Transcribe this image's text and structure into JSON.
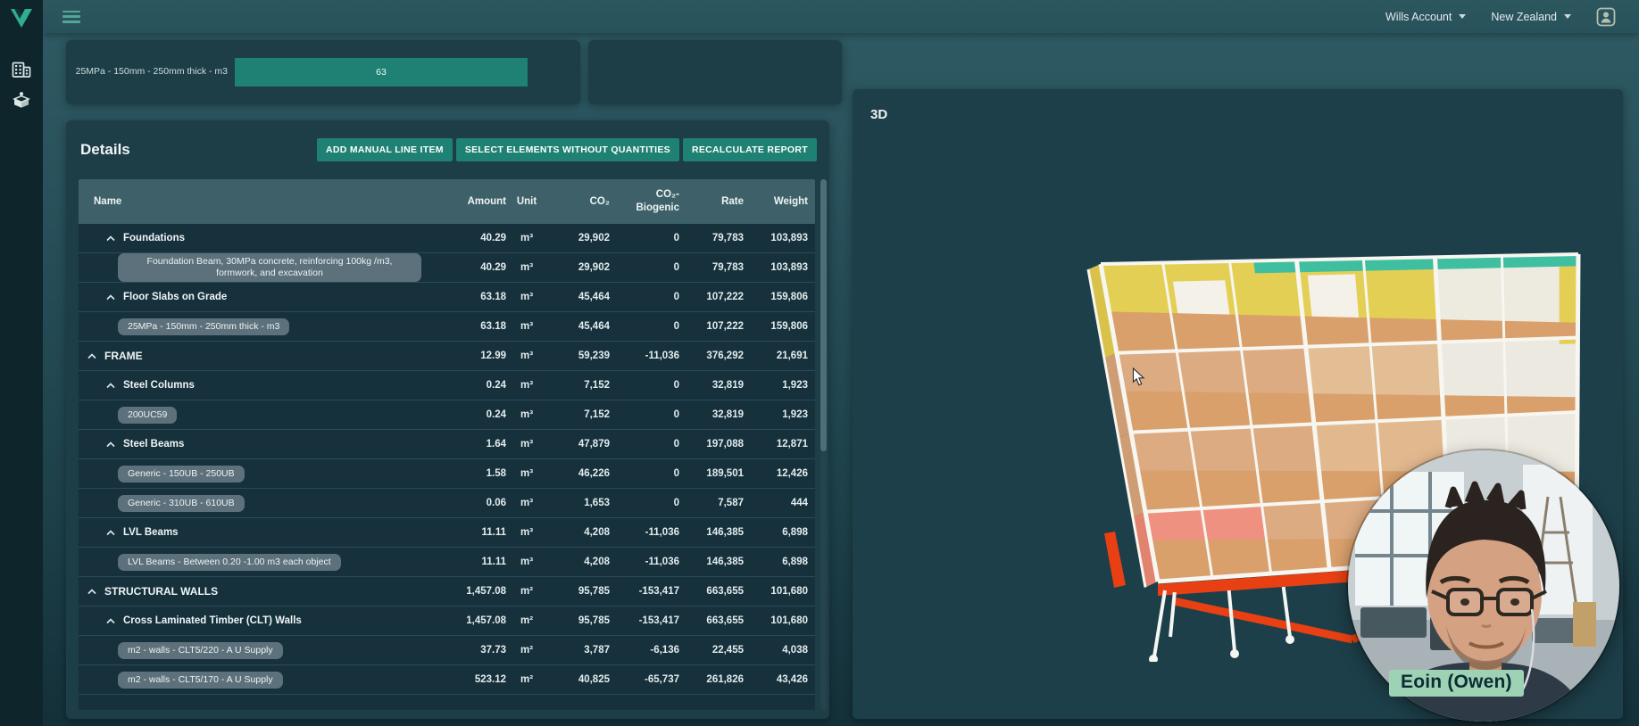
{
  "topbar": {
    "account": "Wills Account",
    "region": "New Zealand",
    "icons": [
      "hamburger-menu",
      "profile-badge"
    ]
  },
  "sidebar": {
    "icons": [
      "v-logo",
      "buildings",
      "product-library"
    ]
  },
  "summary": {
    "bar_label": "25MPa - 150mm - 250mm thick - m3",
    "bar_value": "63"
  },
  "chart_data": {
    "type": "bar",
    "categories": [
      "25MPa - 150mm - 250mm thick - m3"
    ],
    "values": [
      63
    ],
    "title": "",
    "xlabel": "",
    "ylabel": "",
    "legend": false
  },
  "details": {
    "title": "Details",
    "buttons": [
      "ADD MANUAL LINE ITEM",
      "SELECT ELEMENTS WITHOUT QUANTITIES",
      "RECALCULATE REPORT"
    ],
    "table": {
      "columns": [
        {
          "key": "name",
          "cls": "c-name",
          "label": "Name"
        },
        {
          "key": "amount",
          "cls": "c-amount",
          "label": "Amount"
        },
        {
          "key": "unit",
          "cls": "c-unit",
          "label": "Unit"
        },
        {
          "key": "co2",
          "cls": "c-co2",
          "label": "CO₂"
        },
        {
          "key": "biogenic",
          "cls": "c-bio",
          "label": "CO₂-\nBiogenic"
        },
        {
          "key": "rate",
          "cls": "c-rate",
          "label": "Rate"
        },
        {
          "key": "weight",
          "cls": "c-weight",
          "label": "Weight"
        }
      ],
      "rows": [
        {
          "type": "group",
          "level": 1,
          "name": "Foundations",
          "amount": "40.29",
          "unit": "m³",
          "co2": "29,902",
          "biogenic": "0",
          "rate": "79,783",
          "weight": "103,893"
        },
        {
          "type": "item",
          "level": 2,
          "name": "Foundation Beam, 30MPa concrete, reinforcing 100kg /m3, formwork, and excavation",
          "amount": "40.29",
          "unit": "m³",
          "co2": "29,902",
          "biogenic": "0",
          "rate": "79,783",
          "weight": "103,893"
        },
        {
          "type": "group",
          "level": 1,
          "name": "Floor Slabs on Grade",
          "amount": "63.18",
          "unit": "m³",
          "co2": "45,464",
          "biogenic": "0",
          "rate": "107,222",
          "weight": "159,806"
        },
        {
          "type": "item",
          "level": 2,
          "name": "25MPa - 150mm - 250mm thick - m3",
          "amount": "63.18",
          "unit": "m³",
          "co2": "45,464",
          "biogenic": "0",
          "rate": "107,222",
          "weight": "159,806"
        },
        {
          "type": "group",
          "level": 0,
          "name": "FRAME",
          "amount": "12.99",
          "unit": "m³",
          "co2": "59,239",
          "biogenic": "-11,036",
          "rate": "376,292",
          "weight": "21,691"
        },
        {
          "type": "group",
          "level": 1,
          "name": "Steel Columns",
          "amount": "0.24",
          "unit": "m³",
          "co2": "7,152",
          "biogenic": "0",
          "rate": "32,819",
          "weight": "1,923"
        },
        {
          "type": "item",
          "level": 2,
          "name": "200UC59",
          "amount": "0.24",
          "unit": "m³",
          "co2": "7,152",
          "biogenic": "0",
          "rate": "32,819",
          "weight": "1,923"
        },
        {
          "type": "group",
          "level": 1,
          "name": "Steel Beams",
          "amount": "1.64",
          "unit": "m³",
          "co2": "47,879",
          "biogenic": "0",
          "rate": "197,088",
          "weight": "12,871"
        },
        {
          "type": "item",
          "level": 2,
          "name": "Generic - 150UB - 250UB",
          "amount": "1.58",
          "unit": "m³",
          "co2": "46,226",
          "biogenic": "0",
          "rate": "189,501",
          "weight": "12,426"
        },
        {
          "type": "item",
          "level": 2,
          "name": "Generic - 310UB - 610UB",
          "amount": "0.06",
          "unit": "m³",
          "co2": "1,653",
          "biogenic": "0",
          "rate": "7,587",
          "weight": "444"
        },
        {
          "type": "group",
          "level": 1,
          "name": "LVL Beams",
          "amount": "11.11",
          "unit": "m³",
          "co2": "4,208",
          "biogenic": "-11,036",
          "rate": "146,385",
          "weight": "6,898"
        },
        {
          "type": "item",
          "level": 2,
          "name": "LVL Beams - Between 0.20 -1.00 m3 each object",
          "amount": "11.11",
          "unit": "m³",
          "co2": "4,208",
          "biogenic": "-11,036",
          "rate": "146,385",
          "weight": "6,898"
        },
        {
          "type": "group",
          "level": 0,
          "name": "STRUCTURAL WALLS",
          "amount": "1,457.08",
          "unit": "m²",
          "co2": "95,785",
          "biogenic": "-153,417",
          "rate": "663,655",
          "weight": "101,680"
        },
        {
          "type": "group",
          "level": 1,
          "name": "Cross Laminated Timber (CLT) Walls",
          "amount": "1,457.08",
          "unit": "m²",
          "co2": "95,785",
          "biogenic": "-153,417",
          "rate": "663,655",
          "weight": "101,680"
        },
        {
          "type": "item",
          "level": 2,
          "name": "m2 - walls - CLT5/220 - A U Supply",
          "amount": "37.73",
          "unit": "m²",
          "co2": "3,787",
          "biogenic": "-6,136",
          "rate": "22,455",
          "weight": "4,038"
        },
        {
          "type": "item",
          "level": 2,
          "name": "m2 - walls - CLT5/170 - A U Supply",
          "amount": "523.12",
          "unit": "m²",
          "co2": "40,825",
          "biogenic": "-65,737",
          "rate": "261,826",
          "weight": "43,426"
        }
      ]
    }
  },
  "viewer": {
    "title": "3D"
  },
  "webcam": {
    "name": "Eoin (Owen)"
  }
}
